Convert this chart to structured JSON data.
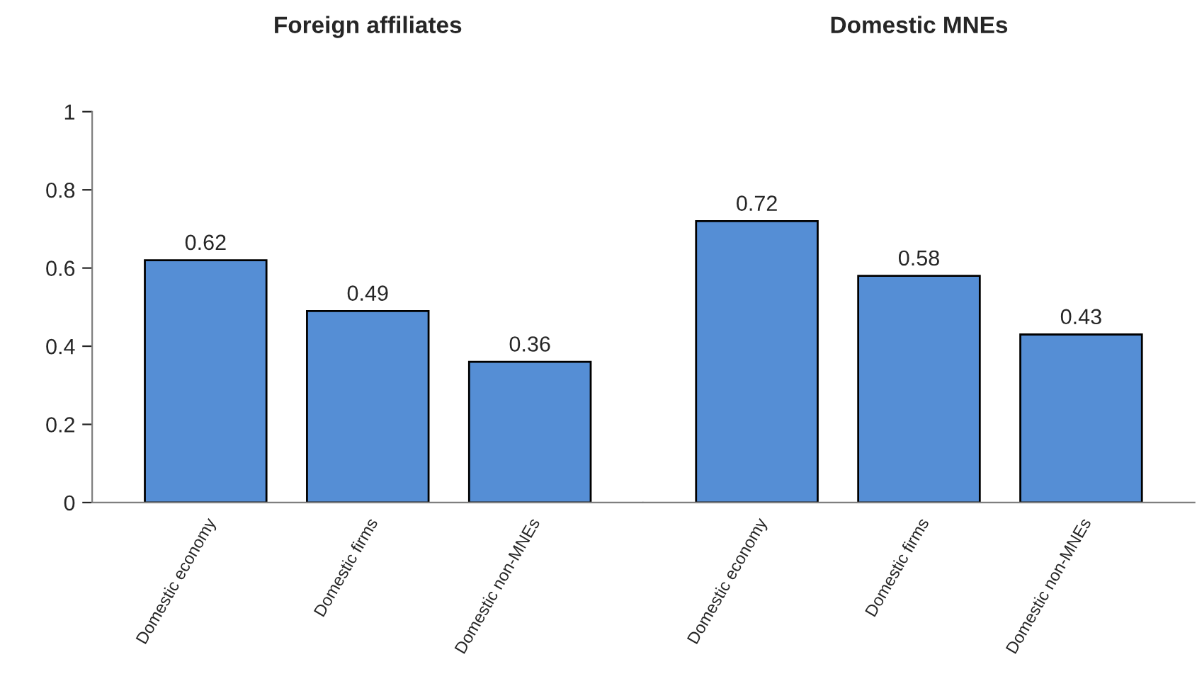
{
  "chart_data": [
    {
      "type": "bar",
      "title": "Foreign affiliates",
      "categories": [
        "Domestic economy",
        "Domestic firms",
        "Domestic non-MNEs"
      ],
      "values": [
        0.62,
        0.49,
        0.36
      ],
      "color": "#558ed5",
      "ylim": [
        0,
        1
      ],
      "yticks": [
        0,
        0.2,
        0.4,
        0.6,
        0.8,
        1
      ],
      "data_labels": true,
      "grid": false,
      "legend": false
    },
    {
      "type": "bar",
      "title": "Domestic MNEs",
      "categories": [
        "Domestic economy",
        "Domestic firms",
        "Domestic non-MNEs"
      ],
      "values": [
        0.72,
        0.58,
        0.43
      ],
      "color": "#558ed5",
      "ylim": [
        0,
        1
      ],
      "yticks": [
        0,
        0.2,
        0.4,
        0.6,
        0.8,
        1
      ],
      "data_labels": true,
      "grid": false,
      "legend": false,
      "tick_labels": "x"
    }
  ]
}
